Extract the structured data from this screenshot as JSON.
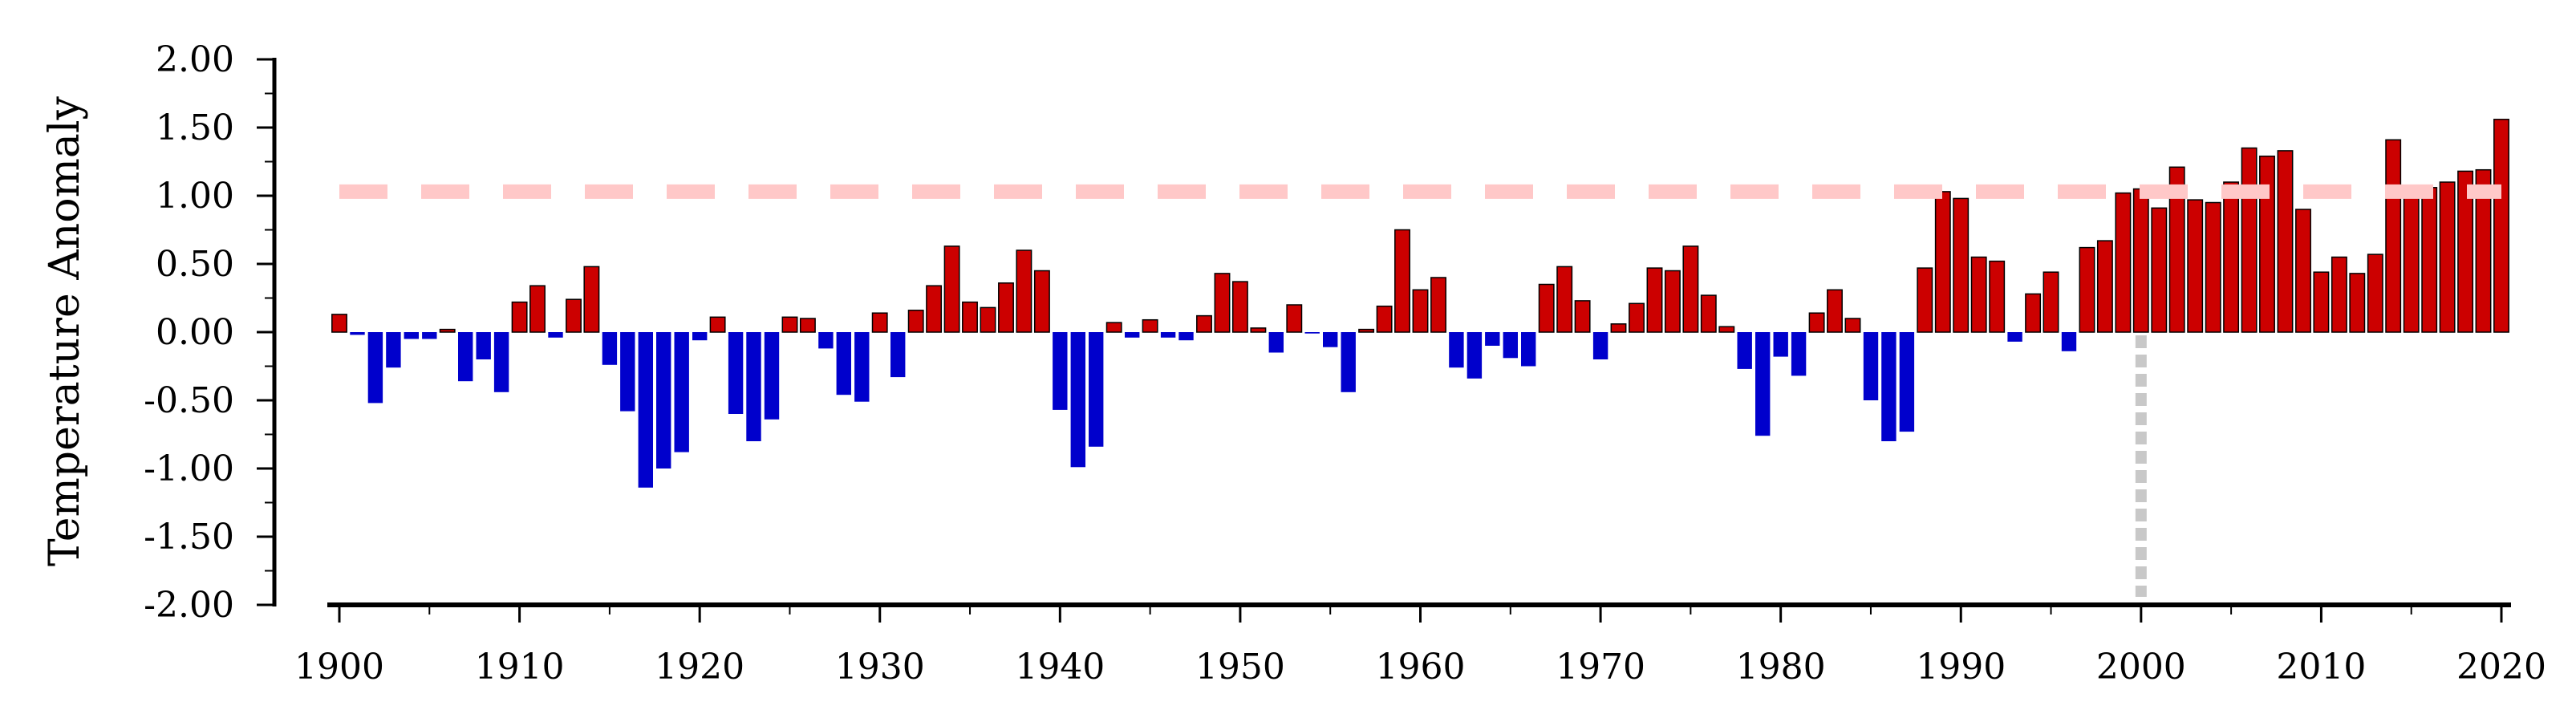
{
  "chart_data": {
    "type": "bar",
    "title": "",
    "xlabel": "",
    "ylabel": "Temperature Anomaly",
    "ylim": [
      -2.0,
      2.0
    ],
    "xlim": [
      1900,
      2020
    ],
    "yticks": [
      "2.00",
      "1.50",
      "1.00",
      "0.50",
      "0.00",
      "-0.50",
      "-1.00",
      "-1.50",
      "-2.00"
    ],
    "xticks": [
      "1900",
      "1910",
      "1920",
      "1930",
      "1940",
      "1950",
      "1960",
      "1970",
      "1980",
      "1990",
      "2000",
      "2010",
      "2020"
    ],
    "grid": false,
    "legend": "none",
    "colors": {
      "positive": "#cc0000",
      "negative": "#0000cc",
      "threshold": "#ffc8c8",
      "marker": "#c8c8c8"
    },
    "threshold_line": {
      "y": 1.03
    },
    "vertical_marker": {
      "x": 2000
    },
    "x": [
      1900,
      1901,
      1902,
      1903,
      1904,
      1905,
      1906,
      1907,
      1908,
      1909,
      1910,
      1911,
      1912,
      1913,
      1914,
      1915,
      1916,
      1917,
      1918,
      1919,
      1920,
      1921,
      1922,
      1923,
      1924,
      1925,
      1926,
      1927,
      1928,
      1929,
      1930,
      1931,
      1932,
      1933,
      1934,
      1935,
      1936,
      1937,
      1938,
      1939,
      1940,
      1941,
      1942,
      1943,
      1944,
      1945,
      1946,
      1947,
      1948,
      1949,
      1950,
      1951,
      1952,
      1953,
      1954,
      1955,
      1956,
      1957,
      1958,
      1959,
      1960,
      1961,
      1962,
      1963,
      1964,
      1965,
      1966,
      1967,
      1968,
      1969,
      1970,
      1971,
      1972,
      1973,
      1974,
      1975,
      1976,
      1977,
      1978,
      1979,
      1980,
      1981,
      1982,
      1983,
      1984,
      1985,
      1986,
      1987,
      1988,
      1989,
      1990,
      1991,
      1992,
      1993,
      1994,
      1995,
      1996,
      1997,
      1998,
      1999,
      2000,
      2001,
      2002,
      2003,
      2004,
      2005,
      2006,
      2007,
      2008,
      2009,
      2010,
      2011,
      2012,
      2013,
      2014,
      2015,
      2016,
      2017,
      2018,
      2019,
      2020
    ],
    "values": [
      0.13,
      -0.02,
      -0.52,
      -0.26,
      -0.05,
      -0.05,
      0.02,
      -0.36,
      -0.2,
      -0.44,
      0.22,
      0.34,
      -0.04,
      0.24,
      0.48,
      -0.24,
      -0.58,
      -1.14,
      -1.0,
      -0.88,
      -0.06,
      0.11,
      -0.6,
      -0.8,
      -0.64,
      0.11,
      0.1,
      -0.12,
      -0.46,
      -0.51,
      0.14,
      -0.33,
      0.16,
      0.34,
      0.63,
      0.22,
      0.18,
      0.36,
      0.6,
      0.45,
      -0.57,
      -0.99,
      -0.84,
      0.07,
      -0.04,
      0.09,
      -0.04,
      -0.06,
      0.12,
      0.43,
      0.37,
      0.03,
      -0.15,
      0.2,
      -0.01,
      -0.11,
      -0.44,
      0.02,
      0.19,
      0.75,
      0.31,
      0.4,
      -0.26,
      -0.34,
      -0.1,
      -0.19,
      -0.25,
      0.35,
      0.48,
      0.23,
      -0.2,
      0.06,
      0.21,
      0.47,
      0.45,
      0.63,
      0.27,
      0.04,
      -0.27,
      -0.76,
      -0.18,
      -0.32,
      0.14,
      0.31,
      0.1,
      -0.5,
      -0.8,
      -0.73,
      0.47,
      1.03,
      0.98,
      0.55,
      0.52,
      -0.07,
      0.28,
      0.44,
      -0.14,
      0.62,
      0.67,
      1.02,
      1.05,
      0.91,
      1.21,
      0.97,
      0.95,
      1.1,
      1.35,
      1.29,
      1.33,
      0.9,
      0.44,
      0.55,
      0.43,
      0.57,
      1.41,
      0.99,
      1.06,
      1.1,
      1.18,
      1.19,
      1.56
    ]
  }
}
